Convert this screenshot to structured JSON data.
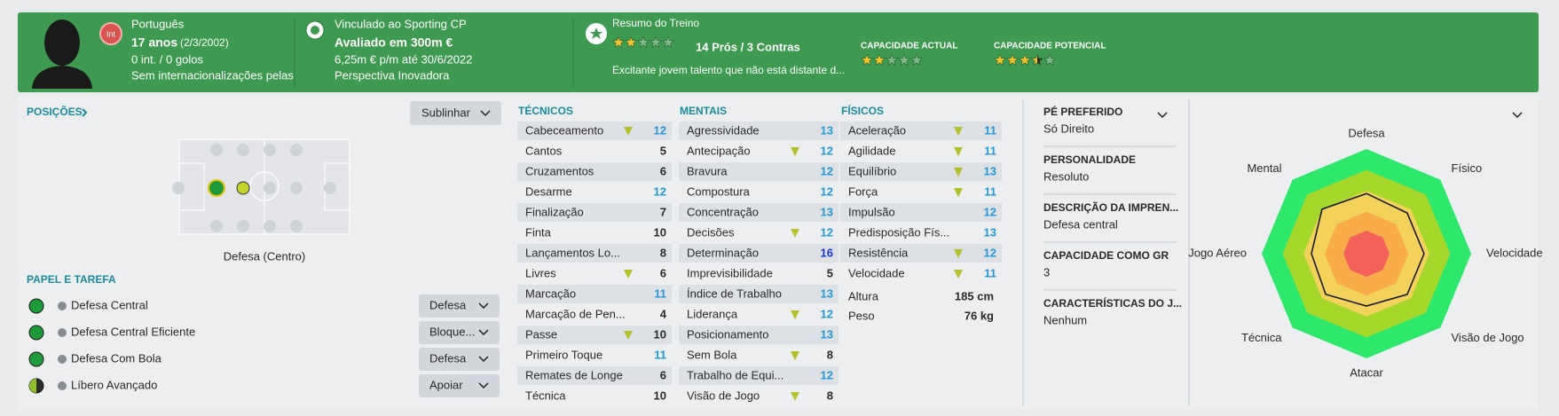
{
  "header": {
    "player": {
      "badge": "Int",
      "nationality": "Português",
      "age": "17 anos",
      "dob": "(2/3/2002)",
      "caps": "0 int. / 0 golos",
      "international": "Sem internacionalizações pelas"
    },
    "contract": {
      "club": "Vinculado ao Sporting CP",
      "value": "Avaliado em 300m €",
      "wage": "6,25m € p/m até 30/6/2022",
      "perspective": "Perspectiva Inovadora"
    },
    "training": {
      "title": "Resumo do Treino",
      "stars": 2,
      "rating_scale": 5,
      "pros_cons": "14 Prós / 3 Contras",
      "summary": "Excitante jovem talento que não está distante d..."
    },
    "ability": [
      {
        "label": "CAPACIDADE ACTUAL",
        "stars": 2
      },
      {
        "label": "CAPACIDADE POTENCIAL",
        "stars": 3.5
      }
    ]
  },
  "positions": {
    "title": "POSIÇÕES",
    "button": "Sublinhar",
    "position": "Defesa (Centro)"
  },
  "roles": {
    "title": "PAPEL E TAREFA",
    "items": [
      {
        "name": "Defesa Central",
        "duty": "Defesa"
      },
      {
        "name": "Defesa Central Eficiente",
        "duty": "Bloque..."
      },
      {
        "name": "Defesa Com Bola",
        "duty": "Defesa"
      },
      {
        "name": "Líbero Avançado",
        "duty": "Apoiar"
      }
    ]
  },
  "attributes": {
    "columns": [
      {
        "title": "TÉCNICOS",
        "rows": [
          {
            "name": "Cabeceamento",
            "value": 12,
            "trend": true
          },
          {
            "name": "Cantos",
            "value": 5,
            "trend": false
          },
          {
            "name": "Cruzamentos",
            "value": 6,
            "trend": false
          },
          {
            "name": "Desarme",
            "value": 12,
            "trend": false
          },
          {
            "name": "Finalização",
            "value": 7,
            "trend": false
          },
          {
            "name": "Finta",
            "value": 10,
            "trend": false
          },
          {
            "name": "Lançamentos Lo...",
            "value": 8,
            "trend": false
          },
          {
            "name": "Livres",
            "value": 6,
            "trend": true
          },
          {
            "name": "Marcação",
            "value": 11,
            "trend": false
          },
          {
            "name": "Marcação de Pen...",
            "value": 4,
            "trend": false
          },
          {
            "name": "Passe",
            "value": 10,
            "trend": true
          },
          {
            "name": "Primeiro Toque",
            "value": 11,
            "trend": false
          },
          {
            "name": "Remates de Longe",
            "value": 6,
            "trend": false
          },
          {
            "name": "Técnica",
            "value": 10,
            "trend": false
          }
        ]
      },
      {
        "title": "MENTAIS",
        "rows": [
          {
            "name": "Agressividade",
            "value": 13,
            "trend": false
          },
          {
            "name": "Antecipação",
            "value": 12,
            "trend": true
          },
          {
            "name": "Bravura",
            "value": 12,
            "trend": false
          },
          {
            "name": "Compostura",
            "value": 12,
            "trend": false
          },
          {
            "name": "Concentração",
            "value": 13,
            "trend": false
          },
          {
            "name": "Decisões",
            "value": 12,
            "trend": true
          },
          {
            "name": "Determinação",
            "value": 16,
            "trend": false
          },
          {
            "name": "Imprevisibilidade",
            "value": 5,
            "trend": false
          },
          {
            "name": "Índice de Trabalho",
            "value": 13,
            "trend": false
          },
          {
            "name": "Liderança",
            "value": 12,
            "trend": true
          },
          {
            "name": "Posicionamento",
            "value": 13,
            "trend": false
          },
          {
            "name": "Sem Bola",
            "value": 8,
            "trend": true
          },
          {
            "name": "Trabalho de Equi...",
            "value": 12,
            "trend": false
          },
          {
            "name": "Visão de Jogo",
            "value": 8,
            "trend": true
          }
        ]
      },
      {
        "title": "FÍSICOS",
        "rows": [
          {
            "name": "Aceleração",
            "value": 11,
            "trend": true
          },
          {
            "name": "Agilidade",
            "value": 11,
            "trend": true
          },
          {
            "name": "Equilíbrio",
            "value": 13,
            "trend": true
          },
          {
            "name": "Força",
            "value": 11,
            "trend": true
          },
          {
            "name": "Impulsão",
            "value": 12,
            "trend": false
          },
          {
            "name": "Predisposição Fís...",
            "value": 13,
            "trend": false
          },
          {
            "name": "Resistência",
            "value": 12,
            "trend": true
          },
          {
            "name": "Velocidade",
            "value": 11,
            "trend": true
          }
        ]
      }
    ],
    "body": [
      {
        "label": "Altura",
        "value": "185 cm"
      },
      {
        "label": "Peso",
        "value": "76 kg"
      }
    ]
  },
  "info": [
    {
      "label": "PÉ PREFERIDO",
      "value": "Só Direito"
    },
    {
      "label": "PERSONALIDADE",
      "value": "Resoluto"
    },
    {
      "label": "DESCRIÇÃO DA IMPREN...",
      "value": "Defesa central"
    },
    {
      "label": "CAPACIDADE COMO GR",
      "value": 3
    },
    {
      "label": "CARACTERÍSTICAS DO J...",
      "value": "Nenhum"
    }
  ],
  "radar": {
    "axes": [
      "Defesa",
      "Físico",
      "Velocidade",
      "Visão de Jogo",
      "Atacar",
      "Técnica",
      "Jogo Aéreo",
      "Mental"
    ],
    "values": [
      11.5,
      11,
      11,
      11,
      10,
      11,
      10.5,
      12
    ],
    "rlim": [
      0,
      20
    ]
  }
}
